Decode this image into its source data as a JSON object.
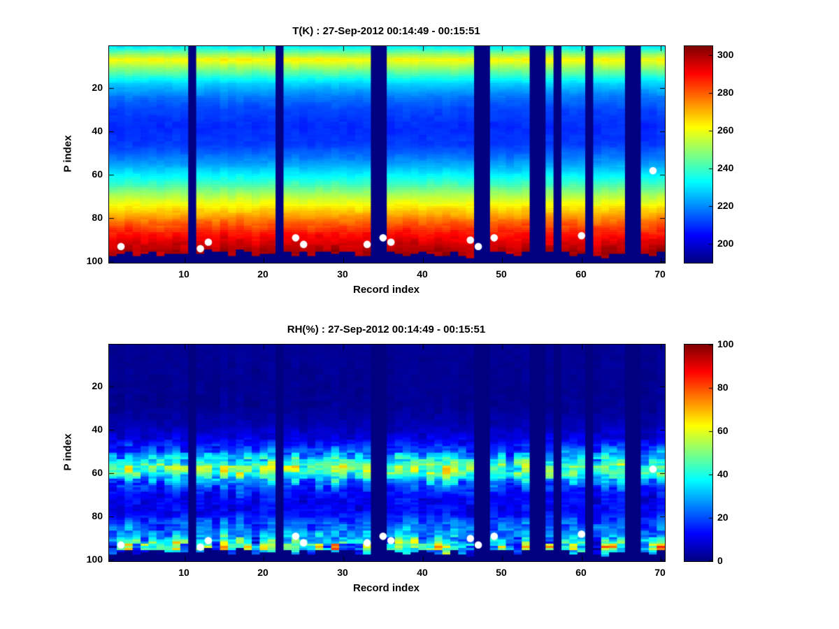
{
  "figure": {
    "background": "#ffffff",
    "colormap": "jet",
    "gap_color": "#000080",
    "marker_color": "#ffffff"
  },
  "chart_data": [
    {
      "type": "heatmap",
      "title": "T(K) : 27-Sep-2012 00:14:49 - 00:15:51",
      "xlabel": "Record index",
      "ylabel": "P index",
      "x_ticks": [
        10,
        20,
        30,
        40,
        50,
        60,
        70
      ],
      "y_ticks": [
        20,
        40,
        60,
        80,
        100
      ],
      "n_records": 70,
      "n_levels": 100,
      "y_axis_reversed": true,
      "colorbar": {
        "min": 190,
        "max": 305,
        "ticks": [
          200,
          220,
          240,
          260,
          280,
          300
        ]
      },
      "profile": [
        [
          1,
          232
        ],
        [
          4,
          248
        ],
        [
          7,
          262
        ],
        [
          10,
          252
        ],
        [
          14,
          240
        ],
        [
          18,
          228
        ],
        [
          24,
          218
        ],
        [
          30,
          212
        ],
        [
          38,
          209
        ],
        [
          46,
          211
        ],
        [
          52,
          218
        ],
        [
          58,
          228
        ],
        [
          64,
          240
        ],
        [
          70,
          254
        ],
        [
          76,
          266
        ],
        [
          82,
          279
        ],
        [
          88,
          290
        ],
        [
          93,
          297
        ],
        [
          96,
          300
        ]
      ],
      "noise_profile": [
        [
          1,
          2
        ],
        [
          30,
          1.5
        ],
        [
          70,
          2
        ],
        [
          85,
          3
        ],
        [
          96,
          4
        ]
      ],
      "gaps": [
        11,
        22,
        34,
        35,
        47,
        48,
        54,
        55,
        57,
        61,
        66,
        67
      ],
      "dots": [
        {
          "record": 2,
          "p": 93
        },
        {
          "record": 12,
          "p": 94
        },
        {
          "record": 13,
          "p": 91
        },
        {
          "record": 24,
          "p": 89
        },
        {
          "record": 25,
          "p": 92
        },
        {
          "record": 33,
          "p": 92
        },
        {
          "record": 35,
          "p": 89
        },
        {
          "record": 36,
          "p": 91
        },
        {
          "record": 46,
          "p": 90
        },
        {
          "record": 47,
          "p": 93
        },
        {
          "record": 49,
          "p": 89
        },
        {
          "record": 60,
          "p": 88
        },
        {
          "record": 69,
          "p": 58
        }
      ]
    },
    {
      "type": "heatmap",
      "title": "RH(%) : 27-Sep-2012 00:14:49 - 00:15:51",
      "xlabel": "Record index",
      "ylabel": "P index",
      "x_ticks": [
        10,
        20,
        30,
        40,
        50,
        60,
        70
      ],
      "y_ticks": [
        20,
        40,
        60,
        80,
        100
      ],
      "n_records": 70,
      "n_levels": 100,
      "y_axis_reversed": true,
      "colorbar": {
        "min": 0,
        "max": 100,
        "ticks": [
          0,
          20,
          40,
          60,
          80,
          100
        ]
      },
      "profile": [
        [
          1,
          2
        ],
        [
          30,
          2
        ],
        [
          38,
          5
        ],
        [
          44,
          10
        ],
        [
          50,
          22
        ],
        [
          54,
          38
        ],
        [
          57,
          50
        ],
        [
          60,
          46
        ],
        [
          63,
          32
        ],
        [
          67,
          18
        ],
        [
          72,
          12
        ],
        [
          78,
          12
        ],
        [
          83,
          20
        ],
        [
          87,
          26
        ],
        [
          90,
          32
        ],
        [
          93,
          42
        ],
        [
          95,
          42
        ],
        [
          96,
          30
        ]
      ],
      "noise_profile": [
        [
          1,
          1
        ],
        [
          38,
          2
        ],
        [
          46,
          6
        ],
        [
          52,
          14
        ],
        [
          57,
          18
        ],
        [
          62,
          16
        ],
        [
          68,
          8
        ],
        [
          75,
          5
        ],
        [
          82,
          8
        ],
        [
          88,
          12
        ],
        [
          91,
          24
        ],
        [
          94,
          40
        ],
        [
          96,
          25
        ]
      ],
      "gaps": [
        11,
        22,
        34,
        35,
        47,
        48,
        54,
        55,
        57,
        61,
        66,
        67
      ],
      "dots": [
        {
          "record": 2,
          "p": 93
        },
        {
          "record": 12,
          "p": 94
        },
        {
          "record": 13,
          "p": 91
        },
        {
          "record": 24,
          "p": 89
        },
        {
          "record": 25,
          "p": 92
        },
        {
          "record": 33,
          "p": 92
        },
        {
          "record": 35,
          "p": 89
        },
        {
          "record": 36,
          "p": 91
        },
        {
          "record": 46,
          "p": 90
        },
        {
          "record": 47,
          "p": 93
        },
        {
          "record": 49,
          "p": 89
        },
        {
          "record": 60,
          "p": 88
        },
        {
          "record": 69,
          "p": 58
        }
      ]
    }
  ]
}
